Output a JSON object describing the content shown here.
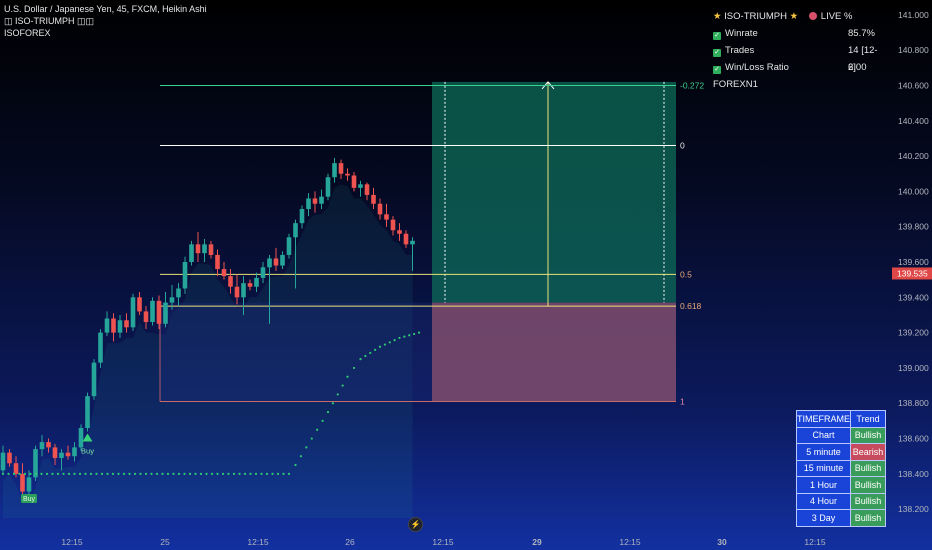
{
  "header": {
    "line1": "U.S. Dollar / Japanese Yen, 45, FXCM, Heikin Ashi",
    "line2": "ISO-TRIUMPH",
    "line3": "ISOFOREX"
  },
  "panel": {
    "title": "ISO-TRIUMPH",
    "live": "LIVE %",
    "rows": [
      {
        "label": "Winrate",
        "value": "85.7%"
      },
      {
        "label": "Trades",
        "value": "14 [12-2]"
      },
      {
        "label": "Win/Loss Ratio",
        "value": "6.00"
      }
    ],
    "footer": "FOREXN1"
  },
  "timeframe_table": {
    "headers": [
      "TIMEFRAME",
      "Trend"
    ],
    "rows": [
      {
        "tf": "Chart",
        "trend": "Bullish"
      },
      {
        "tf": "5 minute",
        "trend": "Bearish"
      },
      {
        "tf": "15 minute",
        "trend": "Bullish"
      },
      {
        "tf": "1 Hour",
        "trend": "Bullish"
      },
      {
        "tf": "4 Hour",
        "trend": "Bullish"
      },
      {
        "tf": "3 Day",
        "trend": "Bullish"
      }
    ]
  },
  "colors": {
    "bull": "#26a69a",
    "bear": "#ef5350",
    "signal": "#2ecc71",
    "fib_level": "#e8e27a",
    "target_zone": "#0e6b58",
    "stop_zone": "#7a4a6e",
    "price_label": "#e04848"
  },
  "chart_data": {
    "type": "candlestick",
    "title": "U.S. Dollar / Japanese Yen, 45, FXCM, Heikin Ashi",
    "ylim": [
      138.15,
      141.05
    ],
    "y_ticks": [
      138.2,
      138.4,
      138.6,
      138.8,
      139.0,
      139.2,
      139.4,
      139.6,
      139.8,
      140.0,
      140.2,
      140.4,
      140.6,
      140.8,
      141.0
    ],
    "y_tick_labels": [
      "138.200",
      "138.400",
      "138.600",
      "138.800",
      "139.000",
      "139.200",
      "139.400",
      "139.600",
      "139.800",
      "140.000",
      "140.200",
      "140.400",
      "140.600",
      "140.800",
      "141.000"
    ],
    "x_tick_labels": [
      "12:15",
      "25",
      "12:15",
      "26",
      "12:15",
      "29",
      "12:15",
      "30",
      "12:15"
    ],
    "current_price": "139.535",
    "candles": [
      {
        "o": 138.42,
        "h": 138.56,
        "l": 138.4,
        "c": 138.52
      },
      {
        "o": 138.52,
        "h": 138.54,
        "l": 138.44,
        "c": 138.46
      },
      {
        "o": 138.46,
        "h": 138.5,
        "l": 138.38,
        "c": 138.4
      },
      {
        "o": 138.4,
        "h": 138.46,
        "l": 138.24,
        "c": 138.3
      },
      {
        "o": 138.3,
        "h": 138.42,
        "l": 138.28,
        "c": 138.38
      },
      {
        "o": 138.38,
        "h": 138.56,
        "l": 138.36,
        "c": 138.54
      },
      {
        "o": 138.54,
        "h": 138.62,
        "l": 138.5,
        "c": 138.58
      },
      {
        "o": 138.58,
        "h": 138.6,
        "l": 138.52,
        "c": 138.55
      },
      {
        "o": 138.55,
        "h": 138.57,
        "l": 138.45,
        "c": 138.49
      },
      {
        "o": 138.49,
        "h": 138.54,
        "l": 138.42,
        "c": 138.52
      },
      {
        "o": 138.52,
        "h": 138.56,
        "l": 138.48,
        "c": 138.5
      },
      {
        "o": 138.5,
        "h": 138.58,
        "l": 138.47,
        "c": 138.55
      },
      {
        "o": 138.55,
        "h": 138.68,
        "l": 138.53,
        "c": 138.66
      },
      {
        "o": 138.66,
        "h": 138.86,
        "l": 138.64,
        "c": 138.84
      },
      {
        "o": 138.84,
        "h": 139.05,
        "l": 138.82,
        "c": 139.03
      },
      {
        "o": 139.03,
        "h": 139.22,
        "l": 139.0,
        "c": 139.2
      },
      {
        "o": 139.2,
        "h": 139.32,
        "l": 139.18,
        "c": 139.28
      },
      {
        "o": 139.28,
        "h": 139.31,
        "l": 139.15,
        "c": 139.2
      },
      {
        "o": 139.2,
        "h": 139.3,
        "l": 139.17,
        "c": 139.27
      },
      {
        "o": 139.27,
        "h": 139.31,
        "l": 139.2,
        "c": 139.23
      },
      {
        "o": 139.23,
        "h": 139.42,
        "l": 139.21,
        "c": 139.4
      },
      {
        "o": 139.4,
        "h": 139.43,
        "l": 139.3,
        "c": 139.32
      },
      {
        "o": 139.32,
        "h": 139.35,
        "l": 139.22,
        "c": 139.26
      },
      {
        "o": 139.26,
        "h": 139.4,
        "l": 139.24,
        "c": 139.38
      },
      {
        "o": 139.38,
        "h": 139.41,
        "l": 139.22,
        "c": 139.25
      },
      {
        "o": 139.25,
        "h": 139.43,
        "l": 139.23,
        "c": 139.37
      },
      {
        "o": 139.37,
        "h": 139.47,
        "l": 139.33,
        "c": 139.4
      },
      {
        "o": 139.4,
        "h": 139.48,
        "l": 139.35,
        "c": 139.45
      },
      {
        "o": 139.45,
        "h": 139.63,
        "l": 139.42,
        "c": 139.6
      },
      {
        "o": 139.6,
        "h": 139.72,
        "l": 139.58,
        "c": 139.7
      },
      {
        "o": 139.7,
        "h": 139.77,
        "l": 139.6,
        "c": 139.65
      },
      {
        "o": 139.65,
        "h": 139.73,
        "l": 139.6,
        "c": 139.7
      },
      {
        "o": 139.7,
        "h": 139.72,
        "l": 139.62,
        "c": 139.64
      },
      {
        "o": 139.64,
        "h": 139.67,
        "l": 139.52,
        "c": 139.56
      },
      {
        "o": 139.56,
        "h": 139.6,
        "l": 139.5,
        "c": 139.52
      },
      {
        "o": 139.52,
        "h": 139.56,
        "l": 139.42,
        "c": 139.46
      },
      {
        "o": 139.46,
        "h": 139.53,
        "l": 139.36,
        "c": 139.4
      },
      {
        "o": 139.4,
        "h": 139.52,
        "l": 139.3,
        "c": 139.48
      },
      {
        "o": 139.48,
        "h": 139.5,
        "l": 139.44,
        "c": 139.46
      },
      {
        "o": 139.46,
        "h": 139.54,
        "l": 139.43,
        "c": 139.51
      },
      {
        "o": 139.51,
        "h": 139.6,
        "l": 139.48,
        "c": 139.57
      },
      {
        "o": 139.57,
        "h": 139.64,
        "l": 139.25,
        "c": 139.62
      },
      {
        "o": 139.62,
        "h": 139.68,
        "l": 139.55,
        "c": 139.58
      },
      {
        "o": 139.58,
        "h": 139.66,
        "l": 139.56,
        "c": 139.64
      },
      {
        "o": 139.64,
        "h": 139.76,
        "l": 139.62,
        "c": 139.74
      },
      {
        "o": 139.74,
        "h": 139.84,
        "l": 139.45,
        "c": 139.82
      },
      {
        "o": 139.82,
        "h": 139.92,
        "l": 139.79,
        "c": 139.9
      },
      {
        "o": 139.9,
        "h": 139.99,
        "l": 139.86,
        "c": 139.96
      },
      {
        "o": 139.96,
        "h": 140.0,
        "l": 139.88,
        "c": 139.93
      },
      {
        "o": 139.93,
        "h": 140.01,
        "l": 139.9,
        "c": 139.97
      },
      {
        "o": 139.97,
        "h": 140.1,
        "l": 139.95,
        "c": 140.08
      },
      {
        "o": 140.08,
        "h": 140.19,
        "l": 140.05,
        "c": 140.16
      },
      {
        "o": 140.16,
        "h": 140.18,
        "l": 140.07,
        "c": 140.1
      },
      {
        "o": 140.1,
        "h": 140.13,
        "l": 140.06,
        "c": 140.09
      },
      {
        "o": 140.09,
        "h": 140.11,
        "l": 140.0,
        "c": 140.02
      },
      {
        "o": 140.02,
        "h": 140.06,
        "l": 139.97,
        "c": 140.04
      },
      {
        "o": 140.04,
        "h": 140.05,
        "l": 139.95,
        "c": 139.98
      },
      {
        "o": 139.98,
        "h": 140.02,
        "l": 139.9,
        "c": 139.93
      },
      {
        "o": 139.93,
        "h": 139.96,
        "l": 139.84,
        "c": 139.87
      },
      {
        "o": 139.87,
        "h": 139.93,
        "l": 139.8,
        "c": 139.84
      },
      {
        "o": 139.84,
        "h": 139.86,
        "l": 139.75,
        "c": 139.78
      },
      {
        "o": 139.78,
        "h": 139.82,
        "l": 139.72,
        "c": 139.76
      },
      {
        "o": 139.76,
        "h": 139.78,
        "l": 139.68,
        "c": 139.7
      },
      {
        "o": 139.7,
        "h": 139.74,
        "l": 139.55,
        "c": 139.72
      }
    ],
    "signal_line": {
      "points": [
        {
          "i": 0,
          "y": 138.4
        },
        {
          "i": 44,
          "y": 138.4
        },
        {
          "i": 45,
          "y": 138.45
        },
        {
          "i": 50,
          "y": 138.75
        },
        {
          "i": 53,
          "y": 138.95
        },
        {
          "i": 55,
          "y": 139.05
        },
        {
          "i": 58,
          "y": 139.12
        },
        {
          "i": 61,
          "y": 139.17
        },
        {
          "i": 64,
          "y": 139.2
        }
      ]
    },
    "buy_signals": [
      {
        "i": 4,
        "label": "Buy",
        "y": 138.32
      },
      {
        "i": 13,
        "label": "Buy",
        "y": 138.64
      }
    ],
    "levels": [
      {
        "label": "-0.272",
        "value": 140.6
      },
      {
        "label": "0",
        "value": 140.26
      },
      {
        "label": "0.5",
        "value": 139.53
      },
      {
        "label": "0.618",
        "value": 139.35
      },
      {
        "label": "1",
        "value": 138.81
      }
    ],
    "target_zone": {
      "from": 139.37,
      "to": 140.62
    },
    "stop_zone": {
      "from": 138.81,
      "to": 139.37
    }
  }
}
